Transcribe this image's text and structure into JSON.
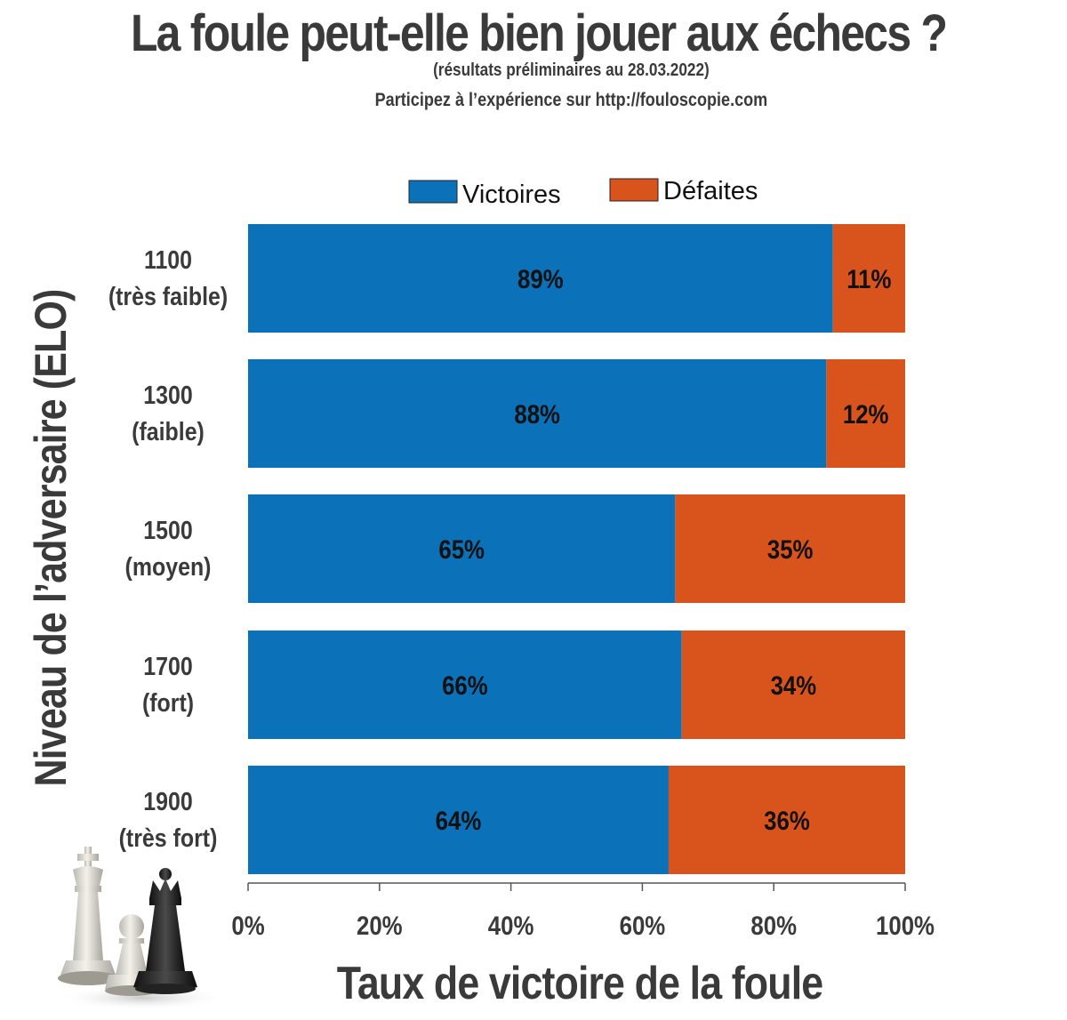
{
  "header": {
    "title": "La foule peut-elle bien jouer aux échecs ?",
    "subtitle": "(résultats préliminaires au 28.03.2022)",
    "cta": "Participez à l’expérience sur http://fouloscopie.com"
  },
  "colors": {
    "victoires": "#0b71b9",
    "defaites": "#d9541c",
    "text": "#3a3a3a"
  },
  "chart_data": {
    "type": "bar",
    "orientation": "horizontal",
    "stacked": true,
    "categories": [
      {
        "elo": "1100",
        "level": "(très faible)"
      },
      {
        "elo": "1300",
        "level": "(faible)"
      },
      {
        "elo": "1500",
        "level": "(moyen)"
      },
      {
        "elo": "1700",
        "level": "(fort)"
      },
      {
        "elo": "1900",
        "level": "(très fort)"
      }
    ],
    "series": [
      {
        "name": "Victoires",
        "values": [
          89,
          88,
          65,
          66,
          64
        ],
        "labels": [
          "89%",
          "88%",
          "65%",
          "66%",
          "64%"
        ]
      },
      {
        "name": "Défaites",
        "values": [
          11,
          12,
          35,
          34,
          36
        ],
        "labels": [
          "11%",
          "12%",
          "35%",
          "34%",
          "36%"
        ]
      }
    ],
    "xlabel": "Taux de victoire de la foule",
    "ylabel": "Niveau de l’adversaire (ELO)",
    "xlim": [
      0,
      100
    ],
    "xticks": [
      "0%",
      "20%",
      "40%",
      "60%",
      "80%",
      "100%"
    ],
    "legend_position": "top",
    "grid": false
  },
  "decoration": {
    "image": "chess-pieces-icon"
  }
}
